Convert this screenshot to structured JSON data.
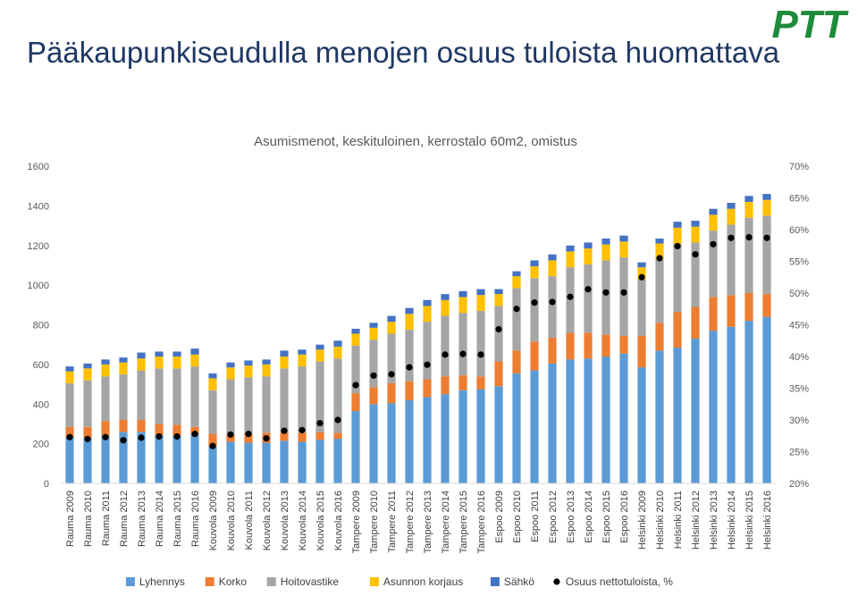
{
  "header": {
    "title": "Pääkaupunkiseudulla menojen osuus tuloista huomattava",
    "logo_text": "PTT",
    "logo_color": "#1e8b3a"
  },
  "chart_data": {
    "type": "bar",
    "stacked": true,
    "title": "Asumismenot, keskitulоinen, kerrostalo 60m2, omistus",
    "categories": [
      "Rauma 2009",
      "Rauma 2010",
      "Rauma 2011",
      "Rauma 2012",
      "Rauma 2013",
      "Rauma 2014",
      "Rauma 2015",
      "Rauma 2016",
      "Kouvola 2009",
      "Kouvola 2010",
      "Kouvola 2011",
      "Kouvola 2012",
      "Kouvola 2013",
      "Kouvola 2014",
      "Kouvola 2015",
      "Kouvola 2016",
      "Tampere 2009",
      "Tampere 2010",
      "Tampere 2011",
      "Tampere 2012",
      "Tampere 2013",
      "Tampere 2014",
      "Tampere 2015",
      "Tampere 2016",
      "Espoo 2009",
      "Espoo 2010",
      "Espoo 2011",
      "Espoo 2012",
      "Espoo 2013",
      "Espoo 2014",
      "Espoo 2015",
      "Espoo 2016",
      "Helsinki 2009",
      "Helsinki 2010",
      "Helsinki 2011",
      "Helsinki 2012",
      "Helsinki 2013",
      "Helsinki 2014",
      "Helsinki 2015",
      "Helsinki 2016"
    ],
    "groups": [
      8,
      8,
      8,
      8,
      8
    ],
    "series": [
      {
        "name": "Lyhennys",
        "color": "#5b9bd5",
        "values": [
          235,
          230,
          240,
          260,
          260,
          245,
          240,
          250,
          185,
          210,
          205,
          205,
          215,
          210,
          220,
          225,
          365,
          400,
          405,
          420,
          435,
          450,
          470,
          475,
          490,
          555,
          570,
          605,
          625,
          630,
          640,
          655,
          585,
          670,
          685,
          730,
          770,
          790,
          820,
          840
        ]
      },
      {
        "name": "Korko",
        "color": "#ed7d31",
        "values": [
          50,
          55,
          75,
          60,
          60,
          55,
          55,
          35,
          65,
          35,
          45,
          50,
          40,
          45,
          40,
          30,
          90,
          85,
          100,
          95,
          90,
          90,
          75,
          65,
          125,
          115,
          145,
          130,
          135,
          130,
          110,
          90,
          160,
          140,
          180,
          160,
          170,
          160,
          140,
          115
        ]
      },
      {
        "name": "Hoitovastike",
        "color": "#a5a5a5",
        "values": [
          220,
          235,
          225,
          230,
          250,
          280,
          285,
          305,
          220,
          280,
          285,
          285,
          325,
          335,
          355,
          375,
          240,
          240,
          250,
          260,
          290,
          305,
          315,
          330,
          280,
          315,
          320,
          310,
          330,
          345,
          375,
          395,
          285,
          320,
          345,
          325,
          335,
          355,
          380,
          395
        ]
      },
      {
        "name": "Asunnon korjaus",
        "color": "#ffc000",
        "values": [
          60,
          60,
          60,
          60,
          60,
          60,
          60,
          60,
          60,
          60,
          60,
          60,
          60,
          60,
          60,
          60,
          60,
          60,
          60,
          80,
          80,
          80,
          80,
          80,
          60,
          60,
          60,
          80,
          80,
          80,
          80,
          80,
          60,
          80,
          80,
          80,
          80,
          80,
          80,
          80
        ]
      },
      {
        "name": "Sähkö",
        "color": "#4472c4",
        "values": [
          25,
          25,
          25,
          25,
          30,
          25,
          25,
          30,
          25,
          25,
          25,
          25,
          30,
          25,
          25,
          30,
          25,
          25,
          30,
          30,
          30,
          30,
          30,
          30,
          25,
          25,
          30,
          30,
          30,
          30,
          30,
          30,
          25,
          25,
          30,
          30,
          30,
          30,
          30,
          30
        ]
      }
    ],
    "line_series": {
      "name": "Osuus nettotuloista, %",
      "axis": "right",
      "values": [
        27.3,
        27.0,
        27.3,
        26.8,
        27.2,
        27.4,
        27.4,
        27.8,
        25.9,
        27.7,
        27.8,
        27.1,
        28.3,
        28.4,
        29.5,
        30.0,
        35.5,
        37.0,
        37.2,
        38.3,
        38.7,
        40.3,
        40.4,
        40.3,
        44.3,
        47.5,
        48.5,
        48.6,
        49.4,
        50.6,
        50.1,
        50.1,
        52.5,
        55.5,
        57.4,
        56.1,
        57.7,
        58.7,
        58.8,
        58.7
      ]
    },
    "y_left": {
      "min": 0,
      "max": 1600,
      "ticks": [
        "0",
        "200",
        "400",
        "600",
        "800",
        "1000",
        "1200",
        "1400",
        "1600"
      ]
    },
    "y_right": {
      "min": 20,
      "max": 70,
      "ticks": [
        "20%",
        "25%",
        "30%",
        "35%",
        "40%",
        "45%",
        "50%",
        "55%",
        "60%",
        "65%",
        "70%"
      ]
    },
    "grid": false,
    "legend_position": "bottom"
  }
}
